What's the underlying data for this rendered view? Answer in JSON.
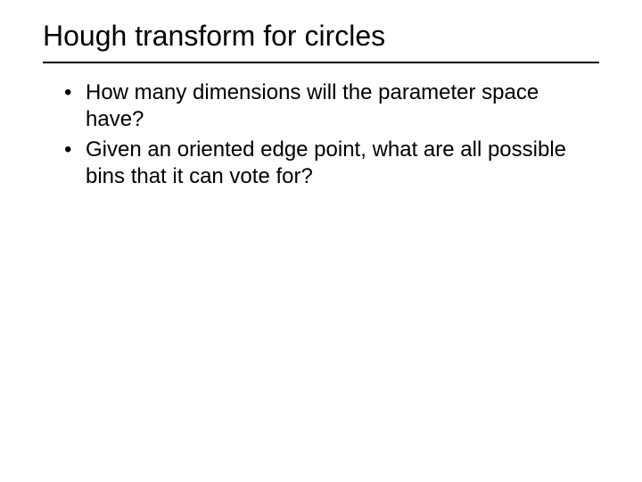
{
  "slide": {
    "title": "Hough transform for circles",
    "bullets": [
      "How many dimensions will the parameter space have?",
      "Given an oriented edge point, what are all possible bins that it can vote for?"
    ]
  },
  "style": {
    "background_color": "#ffffff",
    "text_color": "#000000",
    "title_fontsize": 32,
    "body_fontsize": 24,
    "title_underline_color": "#000000",
    "title_underline_width": 2,
    "font_family": "Arial, Helvetica, sans-serif"
  }
}
